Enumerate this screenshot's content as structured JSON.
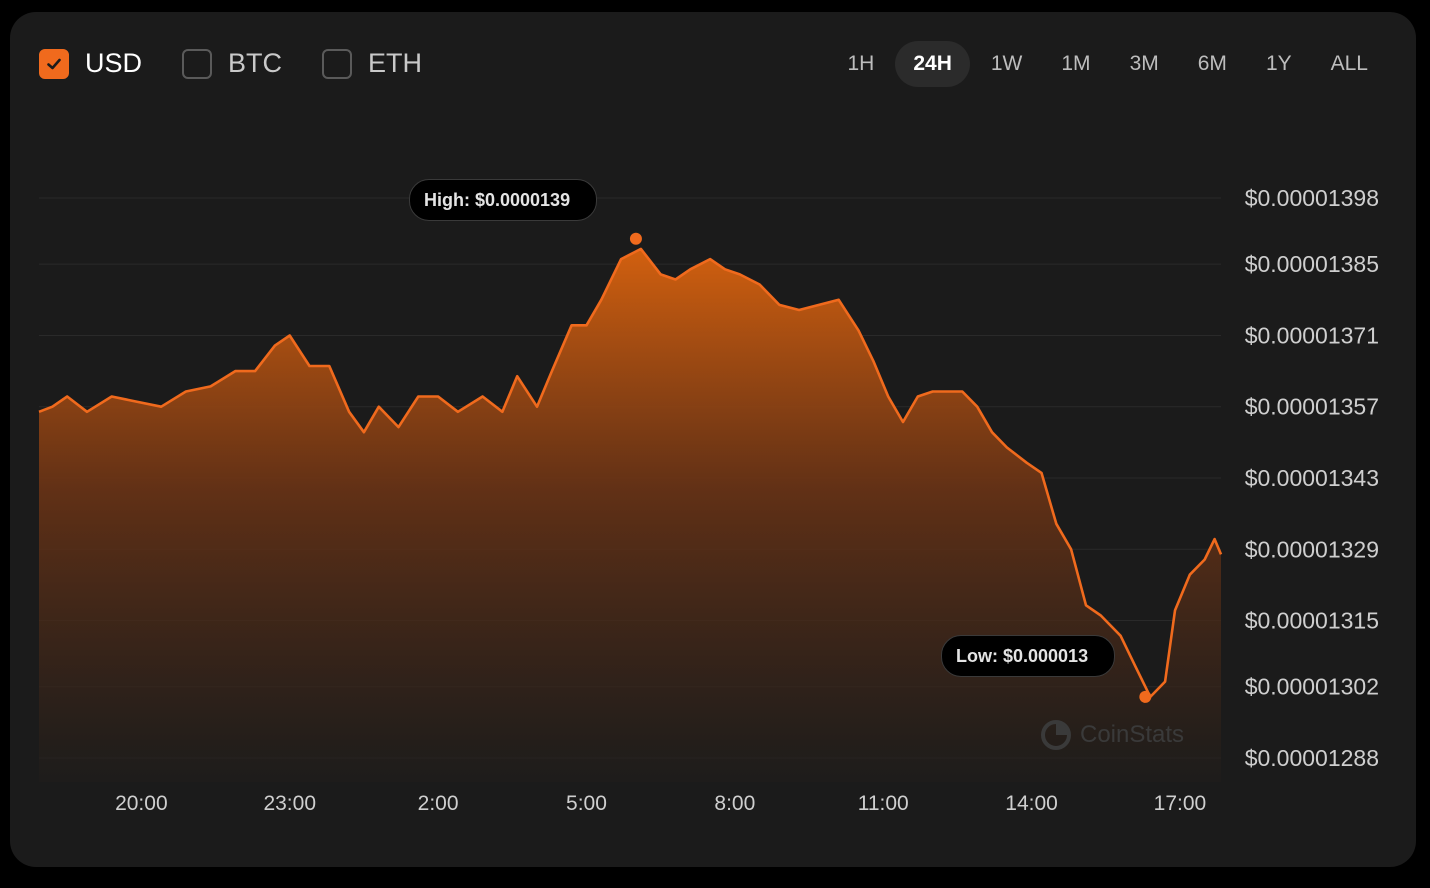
{
  "currencies": [
    {
      "label": "USD",
      "checked": true
    },
    {
      "label": "BTC",
      "checked": false
    },
    {
      "label": "ETH",
      "checked": false
    }
  ],
  "ranges": [
    "1H",
    "24H",
    "1W",
    "1M",
    "3M",
    "6M",
    "1Y",
    "ALL"
  ],
  "active_range": "24H",
  "colors": {
    "accent": "#f06a1d",
    "background": "#1b1b1b"
  },
  "watermark": "CoinStats",
  "high_label": "High: $0.0000139",
  "low_label": "Low: $0.000013",
  "chart_data": {
    "type": "area",
    "x_tick_labels": [
      "20:00",
      "23:00",
      "2:00",
      "5:00",
      "8:00",
      "11:00",
      "14:00",
      "17:00"
    ],
    "x_tick_hours": [
      20,
      23,
      26,
      29,
      32,
      35,
      38,
      41
    ],
    "x_range_hours": [
      17.93,
      41.83
    ],
    "y_tick_labels": [
      "$0.00001398",
      "$0.00001385",
      "$0.00001371",
      "$0.00001357",
      "$0.00001343",
      "$0.00001329",
      "$0.00001315",
      "$0.00001302",
      "$0.00001288"
    ],
    "y_ticks": [
      1.398e-05,
      1.385e-05,
      1.371e-05,
      1.357e-05,
      1.343e-05,
      1.329e-05,
      1.315e-05,
      1.302e-05,
      1.288e-05
    ],
    "ylim": [
      1.288e-05,
      1.398e-05
    ],
    "grid": true,
    "series": [
      {
        "x": [
          17.93,
          18.2,
          18.5,
          18.9,
          19.4,
          19.9,
          20.4,
          20.9,
          21.4,
          21.9,
          22.3,
          22.7,
          23.0,
          23.4,
          23.8,
          24.2,
          24.5,
          24.8,
          25.2,
          25.6,
          26.0,
          26.4,
          26.9,
          27.3,
          27.6,
          28.0,
          28.3,
          28.7,
          29.0,
          29.3,
          29.7,
          30.1,
          30.5,
          30.8,
          31.1,
          31.5,
          31.8,
          32.1,
          32.5,
          32.9,
          33.3,
          33.7,
          34.1,
          34.5,
          34.8,
          35.1,
          35.4,
          35.7,
          36.0,
          36.3,
          36.6,
          36.9,
          37.2,
          37.5,
          37.9,
          38.2,
          38.5,
          38.8,
          39.1,
          39.4,
          39.8,
          40.1,
          40.4,
          40.7,
          40.9,
          41.2,
          41.5,
          41.7,
          41.83
        ],
        "y": [
          1.356e-05,
          1.357e-05,
          1.359e-05,
          1.356e-05,
          1.359e-05,
          1.358e-05,
          1.357e-05,
          1.36e-05,
          1.361e-05,
          1.364e-05,
          1.364e-05,
          1.369e-05,
          1.371e-05,
          1.365e-05,
          1.365e-05,
          1.356e-05,
          1.352e-05,
          1.357e-05,
          1.353e-05,
          1.359e-05,
          1.359e-05,
          1.356e-05,
          1.359e-05,
          1.356e-05,
          1.363e-05,
          1.357e-05,
          1.364e-05,
          1.373e-05,
          1.373e-05,
          1.378e-05,
          1.386e-05,
          1.388e-05,
          1.383e-05,
          1.382e-05,
          1.384e-05,
          1.386e-05,
          1.384e-05,
          1.383e-05,
          1.381e-05,
          1.377e-05,
          1.376e-05,
          1.377e-05,
          1.378e-05,
          1.372e-05,
          1.366e-05,
          1.359e-05,
          1.354e-05,
          1.359e-05,
          1.36e-05,
          1.36e-05,
          1.36e-05,
          1.357e-05,
          1.352e-05,
          1.349e-05,
          1.346e-05,
          1.344e-05,
          1.334e-05,
          1.329e-05,
          1.318e-05,
          1.316e-05,
          1.312e-05,
          1.306e-05,
          1.3e-05,
          1.303e-05,
          1.317e-05,
          1.324e-05,
          1.327e-05,
          1.331e-05,
          1.328e-05
        ]
      }
    ],
    "high": {
      "x": 30.0,
      "y": 1.39e-05
    },
    "low": {
      "x": 40.3,
      "y": 1.3e-05
    }
  }
}
